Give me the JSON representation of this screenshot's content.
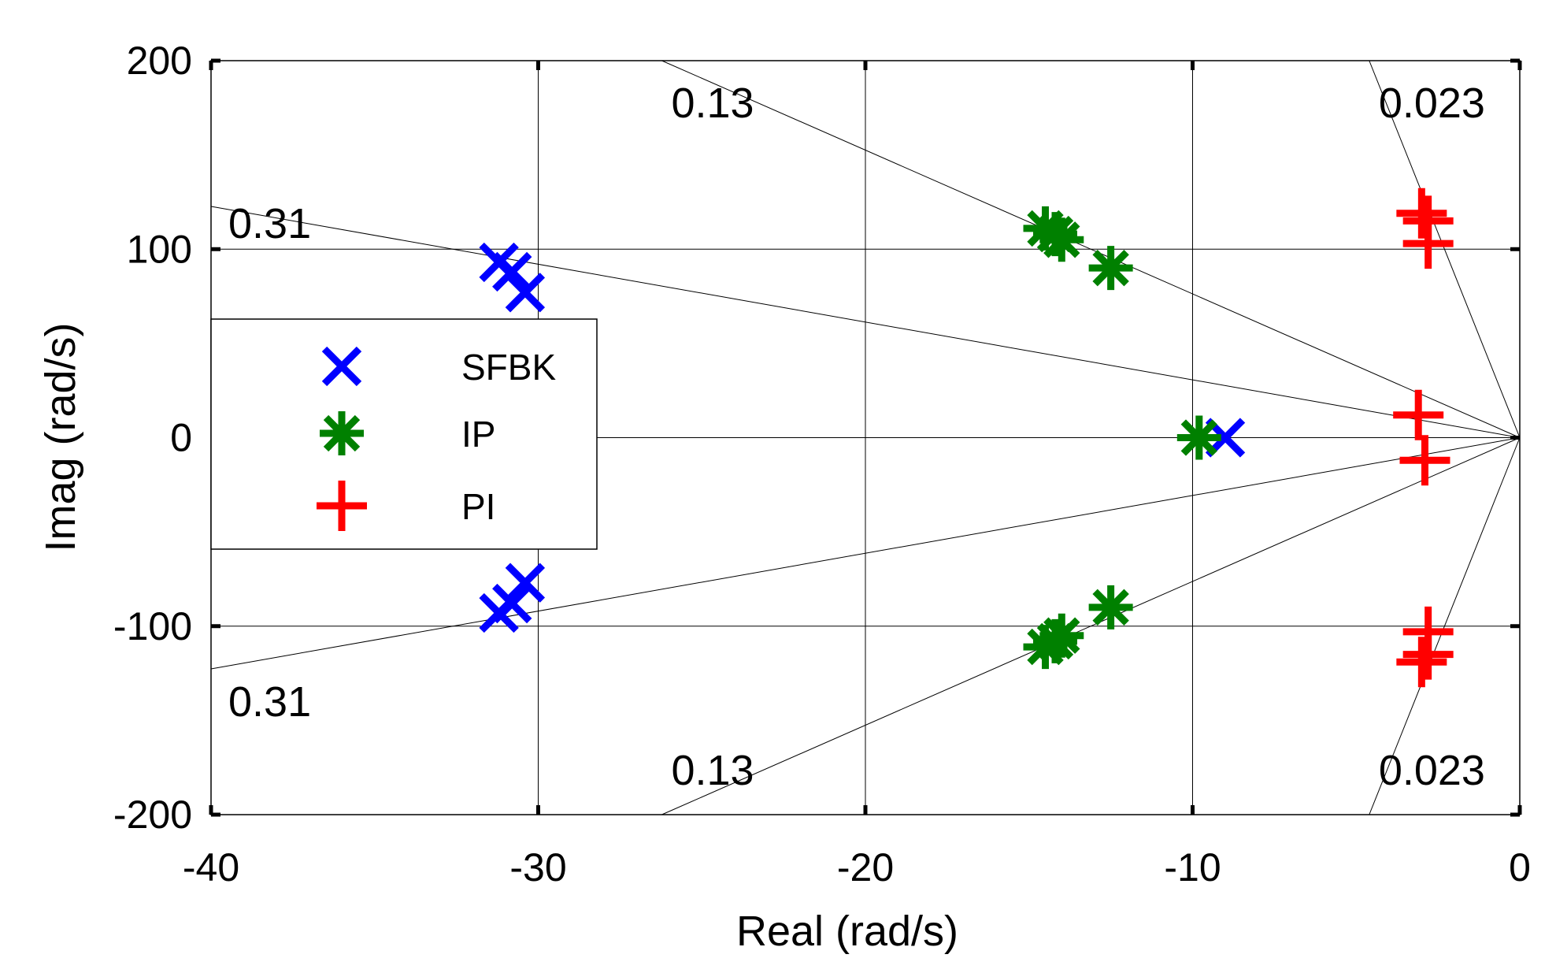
{
  "chart_data": {
    "type": "scatter",
    "title": "",
    "xlabel": "Real (rad/s)",
    "ylabel": "Imag (rad/s)",
    "xlim": [
      -40,
      0
    ],
    "ylim": [
      -200,
      200
    ],
    "x_ticks": [
      -40,
      -30,
      -20,
      -10,
      0
    ],
    "y_ticks": [
      -200,
      -100,
      0,
      100,
      200
    ],
    "x_tick_labels": [
      "-40",
      "-30",
      "-20",
      "-10",
      "0"
    ],
    "y_tick_labels": [
      "-200",
      "-100",
      "0",
      "100",
      "200"
    ],
    "grid": true,
    "damping_lines": [
      {
        "zeta": 0.31,
        "label": "0.31"
      },
      {
        "zeta": 0.13,
        "label": "0.13"
      },
      {
        "zeta": 0.023,
        "label": "0.023"
      }
    ],
    "legend_position": "left",
    "series": [
      {
        "name": "SFBK",
        "marker": "x",
        "color": "#0000ff",
        "points": [
          [
            -31.2,
            93
          ],
          [
            -30.8,
            88
          ],
          [
            -30.4,
            77
          ],
          [
            -9.0,
            0
          ],
          [
            -31.2,
            -93
          ],
          [
            -30.8,
            -88
          ],
          [
            -30.4,
            -77
          ]
        ]
      },
      {
        "name": "IP",
        "marker": "asterisk",
        "color": "#008000",
        "points": [
          [
            -14.5,
            111
          ],
          [
            -14.2,
            108
          ],
          [
            -14.0,
            105
          ],
          [
            -12.5,
            90
          ],
          [
            -9.8,
            0
          ],
          [
            -14.5,
            -111
          ],
          [
            -14.2,
            -108
          ],
          [
            -14.0,
            -105
          ],
          [
            -12.5,
            -90
          ]
        ]
      },
      {
        "name": "PI",
        "marker": "plus",
        "color": "#ff0000",
        "points": [
          [
            -3.0,
            119
          ],
          [
            -2.8,
            115
          ],
          [
            -2.8,
            103
          ],
          [
            -3.1,
            12
          ],
          [
            -2.9,
            -12
          ],
          [
            -3.0,
            -119
          ],
          [
            -2.8,
            -115
          ],
          [
            -2.8,
            -103
          ]
        ]
      }
    ]
  }
}
